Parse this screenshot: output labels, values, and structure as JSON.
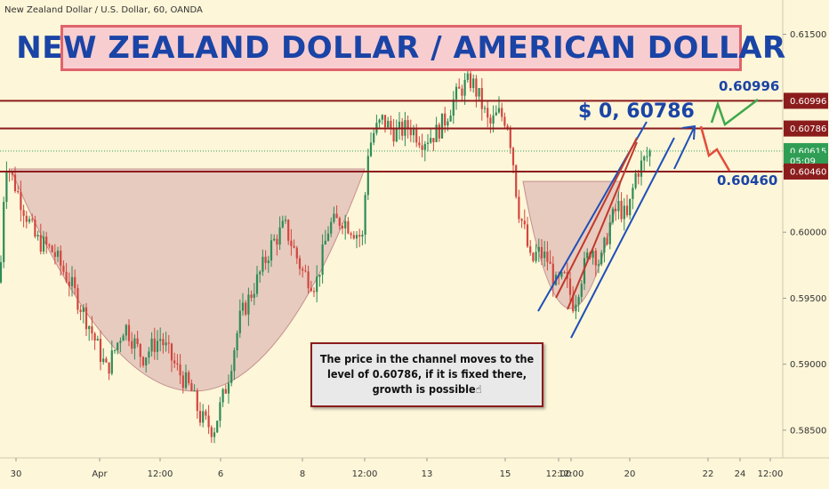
{
  "header": {
    "symbol": "New Zealand Dollar / U.S. Dollar, 60, OANDA",
    "title": "NEW ZEALAND DOLLAR / AMERICAN DOLLAR"
  },
  "annotations": {
    "target_label": "$ 0, 60786",
    "upper_label": "0.60996",
    "lower_label": "0.60460",
    "note": "The price in the channel moves to the level of 0.60786, if it is fixed there, growth is possible☝"
  },
  "price_axis": {
    "ticks": [
      "0.61500",
      "0.61000",
      "0.60500",
      "0.60000",
      "0.59500",
      "0.59000",
      "0.58500"
    ],
    "tags": [
      {
        "label": "0.60996",
        "value": 0.60996,
        "color": "#8b1c1c"
      },
      {
        "label": "0.60786",
        "value": 0.60786,
        "color": "#8b1c1c"
      },
      {
        "label": "0.60615",
        "value": 0.60615,
        "color": "#2f9e54"
      },
      {
        "label": "05:09",
        "value": 0.6054,
        "color": "#2f9e54"
      },
      {
        "label": "0.60460",
        "value": 0.6046,
        "color": "#8b1c1c"
      }
    ],
    "partial_label": "0"
  },
  "time_axis": {
    "ticks": [
      "30",
      "Apr",
      "12:00",
      "6",
      "8",
      "12:00",
      "13",
      "15",
      "12:00",
      "12:00",
      "20",
      "22",
      "24",
      "12:00"
    ]
  },
  "chart_data": {
    "type": "candlestick",
    "title": "NEW ZEALAND DOLLAR / AMERICAN DOLLAR",
    "xlabel": "",
    "ylabel": "",
    "ylim": [
      0.5829,
      0.6176
    ],
    "horizontal_levels": [
      0.60996,
      0.60786,
      0.6046
    ],
    "current_price": 0.60615,
    "price_path": [
      [
        0,
        0.5962
      ],
      [
        6,
        0.6055
      ],
      [
        20,
        0.603
      ],
      [
        40,
        0.5995
      ],
      [
        60,
        0.5985
      ],
      [
        80,
        0.596
      ],
      [
        100,
        0.593
      ],
      [
        120,
        0.5895
      ],
      [
        140,
        0.593
      ],
      [
        160,
        0.5905
      ],
      [
        180,
        0.592
      ],
      [
        200,
        0.5895
      ],
      [
        215,
        0.588
      ],
      [
        225,
        0.586
      ],
      [
        240,
        0.585
      ],
      [
        255,
        0.5885
      ],
      [
        270,
        0.5935
      ],
      [
        290,
        0.5965
      ],
      [
        305,
        0.599
      ],
      [
        320,
        0.6005
      ],
      [
        340,
        0.597
      ],
      [
        355,
        0.596
      ],
      [
        370,
        0.6005
      ],
      [
        385,
        0.601
      ],
      [
        400,
        0.6
      ],
      [
        408,
        0.5995
      ],
      [
        413,
        0.606
      ],
      [
        420,
        0.6075
      ],
      [
        430,
        0.6085
      ],
      [
        445,
        0.6075
      ],
      [
        460,
        0.608
      ],
      [
        475,
        0.607
      ],
      [
        490,
        0.6075
      ],
      [
        500,
        0.6085
      ],
      [
        510,
        0.61
      ],
      [
        520,
        0.611
      ],
      [
        530,
        0.6115
      ],
      [
        540,
        0.61
      ],
      [
        550,
        0.608
      ],
      [
        560,
        0.609
      ],
      [
        570,
        0.6085
      ],
      [
        576,
        0.606
      ],
      [
        582,
        0.602
      ],
      [
        590,
        0.6
      ],
      [
        597,
        0.5975
      ],
      [
        604,
        0.5985
      ],
      [
        615,
        0.598
      ],
      [
        625,
        0.596
      ],
      [
        635,
        0.5965
      ],
      [
        645,
        0.5945
      ],
      [
        655,
        0.597
      ],
      [
        665,
        0.599
      ],
      [
        675,
        0.5975
      ],
      [
        685,
        0.6005
      ],
      [
        695,
        0.602
      ],
      [
        705,
        0.601
      ],
      [
        715,
        0.6045
      ],
      [
        725,
        0.6055
      ],
      [
        732,
        0.6062
      ]
    ]
  }
}
